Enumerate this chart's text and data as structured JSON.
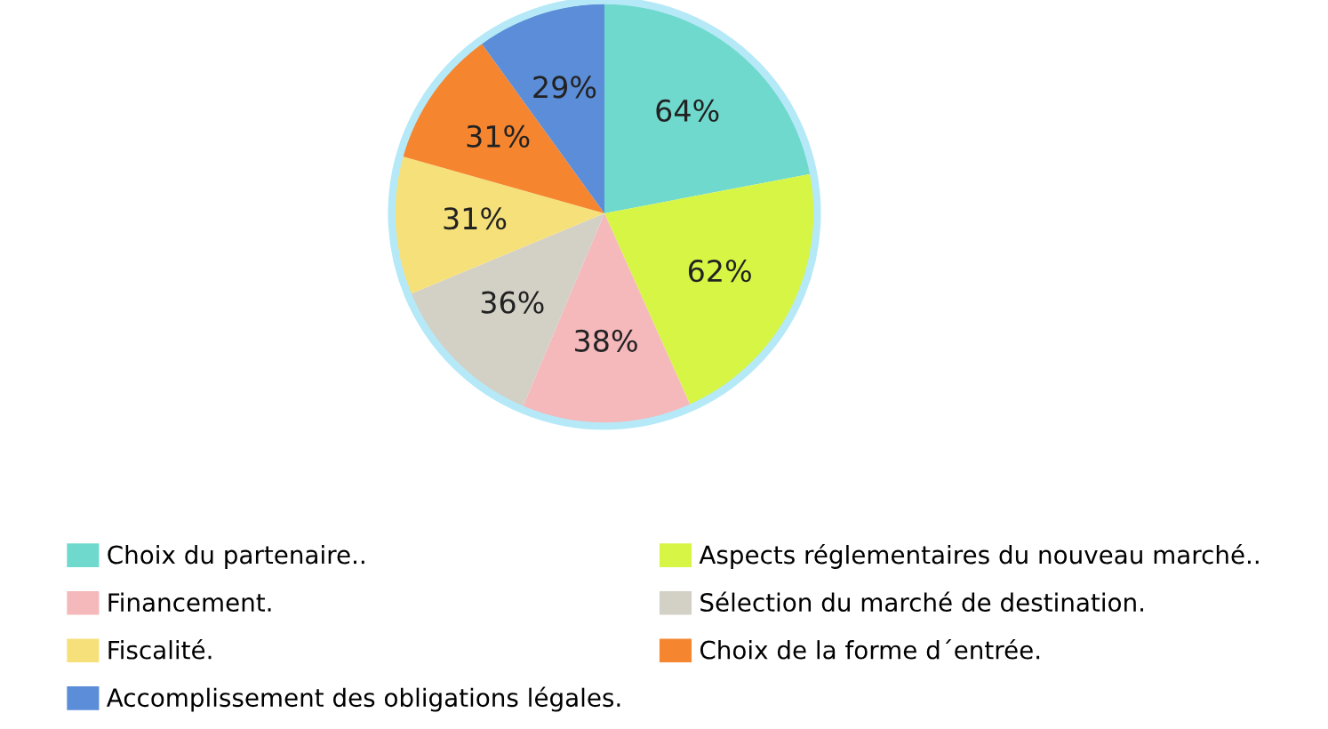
{
  "chart_data": {
    "type": "pie",
    "categories": [
      "Choix du partenaire..",
      "Aspects réglementaires du nouveau marché..",
      "Financement.",
      "Sélection du marché de destination.",
      "Fiscalité.",
      "Choix de la forme d´entrée.",
      "Accomplissement des obligations légales."
    ],
    "values": [
      64,
      62,
      38,
      36,
      31,
      31,
      29
    ],
    "value_labels": [
      "64%",
      "62%",
      "38%",
      "36%",
      "31%",
      "31%",
      "29%"
    ],
    "colors": [
      "#70d9cd",
      "#d6f545",
      "#f5b8bb",
      "#d3d0c6",
      "#f6e07a",
      "#f5852f",
      "#5b8dd8"
    ],
    "legend": "bottom"
  }
}
